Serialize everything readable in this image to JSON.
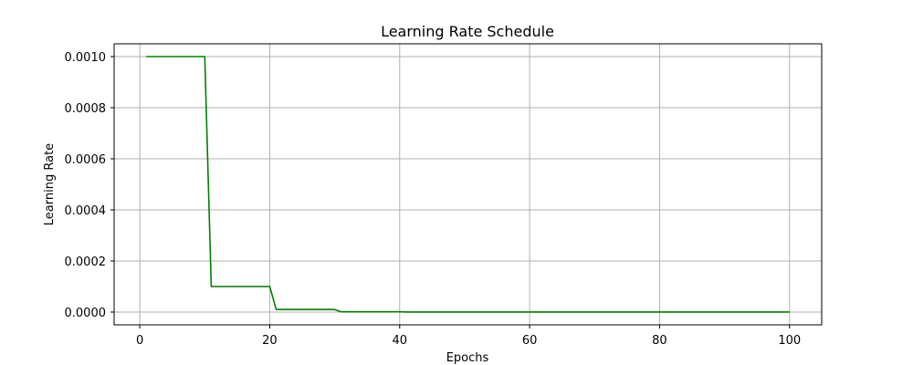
{
  "chart_data": {
    "type": "line",
    "title": "Learning Rate Schedule",
    "xlabel": "Epochs",
    "ylabel": "Learning Rate",
    "xlim": [
      -3.95,
      104.95
    ],
    "ylim": [
      -5e-05,
      0.00105
    ],
    "x_ticks": [
      0,
      20,
      40,
      60,
      80,
      100
    ],
    "x_tick_labels": [
      "0",
      "20",
      "40",
      "60",
      "80",
      "100"
    ],
    "y_ticks": [
      0.0,
      0.0002,
      0.0004,
      0.0006,
      0.0008,
      0.001
    ],
    "y_tick_labels": [
      "0.0000",
      "0.0002",
      "0.0004",
      "0.0006",
      "0.0008",
      "0.0010"
    ],
    "grid": true,
    "legend": "none",
    "series": [
      {
        "color": "#008000",
        "x": [
          1,
          10,
          11,
          20,
          21,
          30,
          31,
          40,
          41,
          100
        ],
        "y": [
          0.001,
          0.001,
          0.0001,
          0.0001,
          1e-05,
          1e-05,
          1e-06,
          1e-06,
          1e-07,
          1e-07
        ]
      }
    ]
  }
}
